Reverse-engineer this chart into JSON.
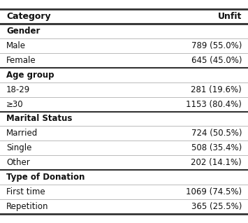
{
  "col_headers": [
    "Category",
    "Unfit"
  ],
  "sections": [
    {
      "header": "Gender",
      "rows": [
        [
          "Male",
          "789 (55.0%)"
        ],
        [
          "Female",
          "645 (45.0%)"
        ]
      ]
    },
    {
      "header": "Age group",
      "rows": [
        [
          "18-29",
          "281 (19.6%)"
        ],
        [
          "≥30",
          "1153 (80.4%)"
        ]
      ]
    },
    {
      "header": "Marital Status",
      "rows": [
        [
          "Married",
          "724 (50.5%)"
        ],
        [
          "Single",
          "508 (35.4%)"
        ],
        [
          "Other",
          "202 (14.1%)"
        ]
      ]
    },
    {
      "header": "Type of Donation",
      "rows": [
        [
          "First time",
          "1069 (74.5%)"
        ],
        [
          "Repetition",
          "365 (25.5%)"
        ]
      ]
    }
  ],
  "bg_color": "#ffffff",
  "header_line_color": "#333333",
  "row_line_color": "#bbbbbb",
  "section_line_color": "#333333",
  "font_size": 8.5,
  "header_font_size": 9.0,
  "fig_width": 3.55,
  "fig_height": 3.19
}
